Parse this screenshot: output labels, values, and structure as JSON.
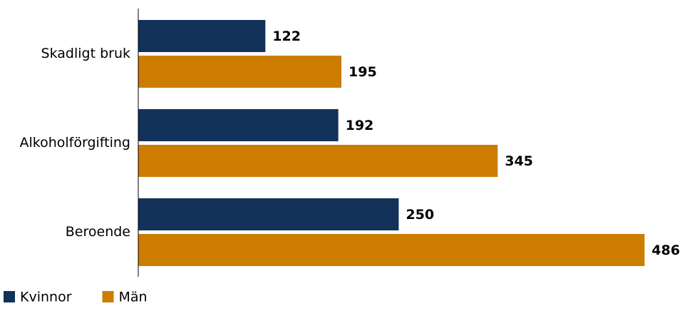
{
  "chart_data": {
    "type": "hbar",
    "categories": [
      "Skadligt bruk",
      "Alkoholförgifting",
      "Beroende"
    ],
    "series": [
      {
        "name": "Kvinnor",
        "color": "#12325a",
        "values": [
          122,
          192,
          250
        ]
      },
      {
        "name": "Män",
        "color": "#cc7d00",
        "values": [
          195,
          345,
          486
        ]
      }
    ],
    "xlim": [
      0,
      520
    ]
  }
}
